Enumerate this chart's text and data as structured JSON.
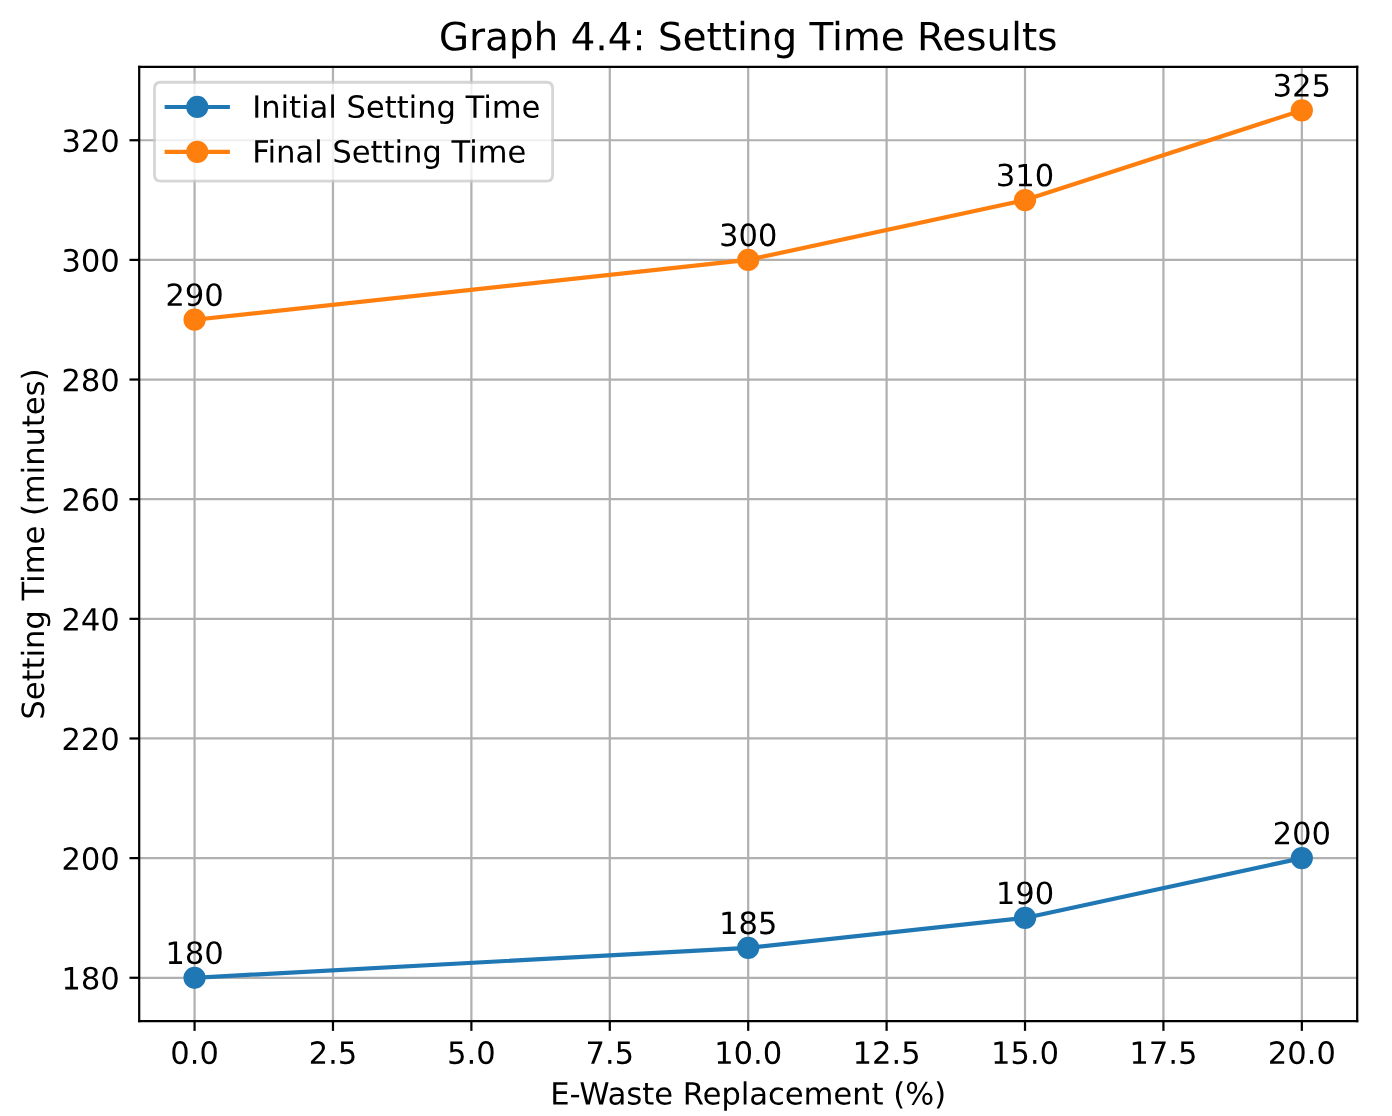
{
  "chart_data": {
    "type": "line",
    "title": "Graph 4.4: Setting Time Results",
    "xlabel": "E-Waste Replacement (%)",
    "ylabel": "Setting Time (minutes)",
    "x": [
      0,
      10,
      15,
      20
    ],
    "series": [
      {
        "name": "Initial Setting Time",
        "color": "#1f77b4",
        "values": [
          180,
          185,
          190,
          200
        ]
      },
      {
        "name": "Final Setting Time",
        "color": "#ff7f0e",
        "values": [
          290,
          300,
          310,
          325
        ]
      }
    ],
    "xlim": [
      -1,
      21
    ],
    "xticks": [
      {
        "value": 0,
        "label": "0.0"
      },
      {
        "value": 2.5,
        "label": "2.5"
      },
      {
        "value": 5,
        "label": "5.0"
      },
      {
        "value": 7.5,
        "label": "7.5"
      },
      {
        "value": 10,
        "label": "10.0"
      },
      {
        "value": 12.5,
        "label": "12.5"
      },
      {
        "value": 15,
        "label": "15.0"
      },
      {
        "value": 17.5,
        "label": "17.5"
      },
      {
        "value": 20,
        "label": "20.0"
      }
    ],
    "ylim": [
      172.75,
      332.25
    ],
    "yticks": [
      180,
      200,
      220,
      240,
      260,
      280,
      300,
      320
    ],
    "grid": true,
    "legend": "top left",
    "marker": "circle",
    "line_style": "solid",
    "data_labels": true
  }
}
